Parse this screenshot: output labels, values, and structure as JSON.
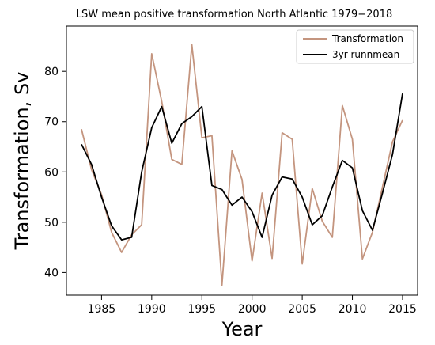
{
  "chart_data": {
    "type": "line",
    "title": "LSW mean positive transformation North Atlantic 1979−2018",
    "xlabel": "Year",
    "ylabel": "Transformation, Sv",
    "xlim": [
      1981.5,
      2016.5
    ],
    "ylim": [
      35.5,
      89
    ],
    "xticks": [
      1985,
      1990,
      1995,
      2000,
      2005,
      2010,
      2015
    ],
    "yticks": [
      40,
      50,
      60,
      70,
      80
    ],
    "grid": false,
    "legend_position": "top-right",
    "x": [
      1983,
      1984,
      1985,
      1986,
      1987,
      1988,
      1989,
      1990,
      1991,
      1992,
      1993,
      1994,
      1995,
      1996,
      1997,
      1998,
      1999,
      2000,
      2001,
      2002,
      2003,
      2004,
      2005,
      2006,
      2007,
      2008,
      2009,
      2010,
      2011,
      2012,
      2013,
      2014,
      2015
    ],
    "series": [
      {
        "name": "Transformation",
        "color": "#c4957f",
        "values": [
          68.5,
          60.5,
          55.5,
          48,
          44,
          47.5,
          49.5,
          83.5,
          74,
          62.5,
          61.5,
          85.3,
          66.8,
          67.2,
          37.5,
          64.2,
          58.5,
          42.3,
          55.8,
          42.8,
          67.8,
          66.5,
          41.7,
          56.7,
          50.2,
          47,
          73.2,
          66.5,
          42.7,
          48,
          57,
          66,
          70.3
        ]
      },
      {
        "name": "3yr runnmean",
        "color": "#000000",
        "values": [
          65.5,
          61.5,
          55,
          49.3,
          46.5,
          47,
          60,
          68.8,
          73,
          65.7,
          69.6,
          71,
          73,
          57.3,
          56.5,
          53.4,
          55,
          52.1,
          47,
          55.4,
          59,
          58.6,
          55,
          49.5,
          51.3,
          57,
          62.3,
          60.8,
          52.3,
          48.4,
          55.8,
          63.5,
          75.6
        ]
      }
    ]
  }
}
